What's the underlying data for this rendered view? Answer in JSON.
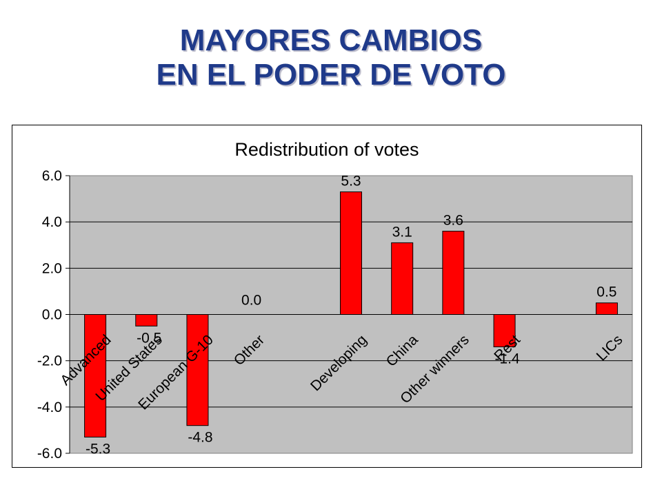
{
  "slide": {
    "title_line1": "MAYORES CAMBIOS",
    "title_line2": "EN EL PODER DE VOTO"
  },
  "colors": {
    "title": "#1f3a8a",
    "plot_area": "#c0c0c0",
    "bar": "#ff0000"
  },
  "chart_data": {
    "type": "bar",
    "title": "Redistribution of votes",
    "categories": [
      "Advanced",
      "United States",
      "European G-10",
      "Other",
      "",
      "Developing",
      "China",
      "Other winners",
      "Rest",
      "",
      "LICs"
    ],
    "values": [
      -5.3,
      -0.5,
      -4.8,
      0.0,
      null,
      5.3,
      3.1,
      3.6,
      -1.4,
      null,
      0.5
    ],
    "data_labels": [
      "-5.3",
      "-0.5",
      "-4.8",
      "0.0",
      "",
      "5.3",
      "3.1",
      "3.6",
      "-1.4",
      "",
      "0.5"
    ],
    "ylim": [
      -6.0,
      6.0
    ],
    "yticks": [
      "6.0",
      "4.0",
      "2.0",
      "0.0",
      "-2.0",
      "-4.0",
      "-6.0"
    ],
    "ytick_values": [
      6,
      4,
      2,
      0,
      -2,
      -4,
      -6
    ],
    "grid": true,
    "legend": "none",
    "xlabel": "",
    "ylabel": ""
  }
}
